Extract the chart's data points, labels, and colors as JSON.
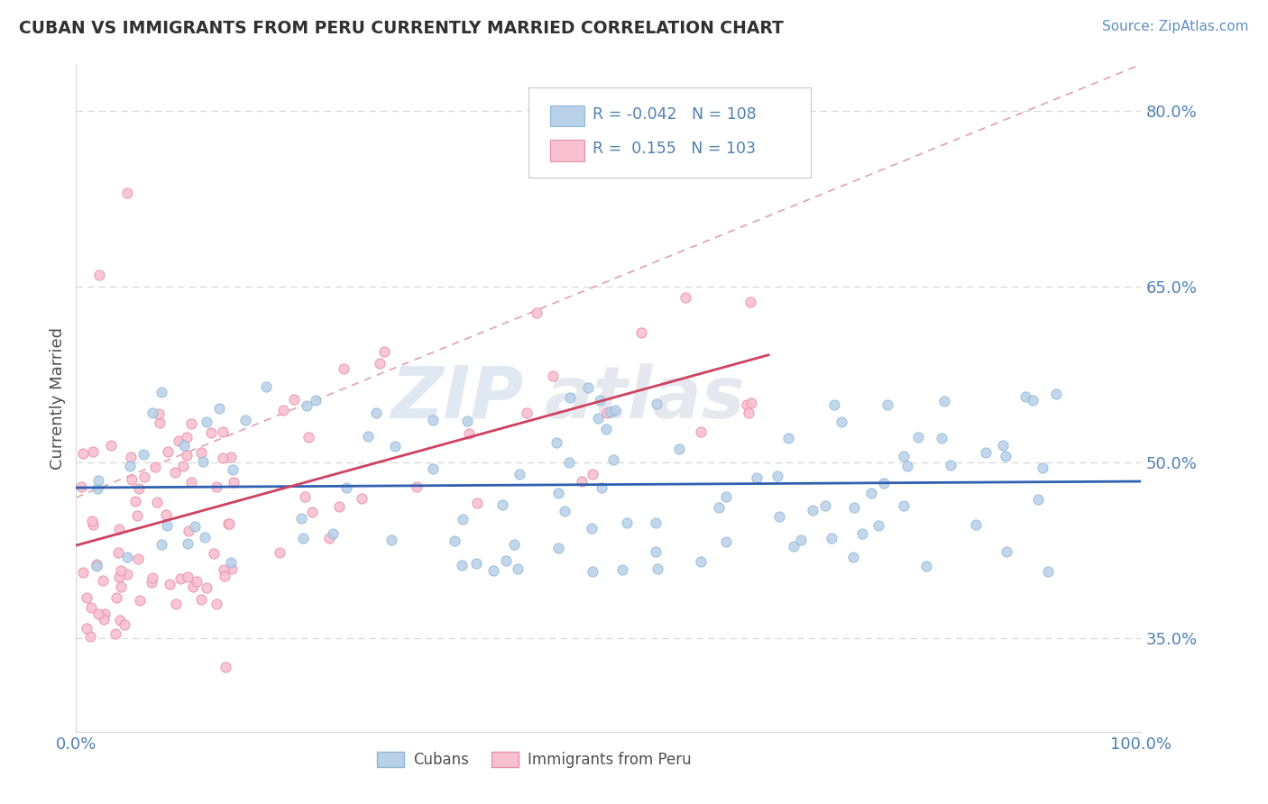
{
  "title": "CUBAN VS IMMIGRANTS FROM PERU CURRENTLY MARRIED CORRELATION CHART",
  "source_text": "Source: ZipAtlas.com",
  "ylabel": "Currently Married",
  "xlim": [
    0.0,
    1.0
  ],
  "ylim": [
    0.27,
    0.84
  ],
  "yticks": [
    0.35,
    0.5,
    0.65,
    0.8
  ],
  "ytick_labels": [
    "35.0%",
    "50.0%",
    "65.0%",
    "80.0%"
  ],
  "xtick_labels": [
    "0.0%",
    "100.0%"
  ],
  "blue_color": "#b8d0e8",
  "blue_edge_color": "#90b8d8",
  "pink_color": "#f8c0d0",
  "pink_edge_color": "#e890a8",
  "blue_line_color": "#3060b0",
  "pink_line_color": "#d04060",
  "dash_line_color": "#e0a0b0",
  "R_blue": -0.042,
  "N_blue": 108,
  "R_pink": 0.155,
  "N_pink": 103,
  "legend_cubans": "Cubans",
  "legend_peru": "Immigrants from Peru",
  "title_color": "#303030",
  "axis_color": "#5080b0",
  "grid_color": "#d8d8d8",
  "watermark_left": "ZIP",
  "watermark_right": "atlas",
  "title_fontsize": 13.5,
  "tick_fontsize": 13,
  "legend_fontsize": 12
}
